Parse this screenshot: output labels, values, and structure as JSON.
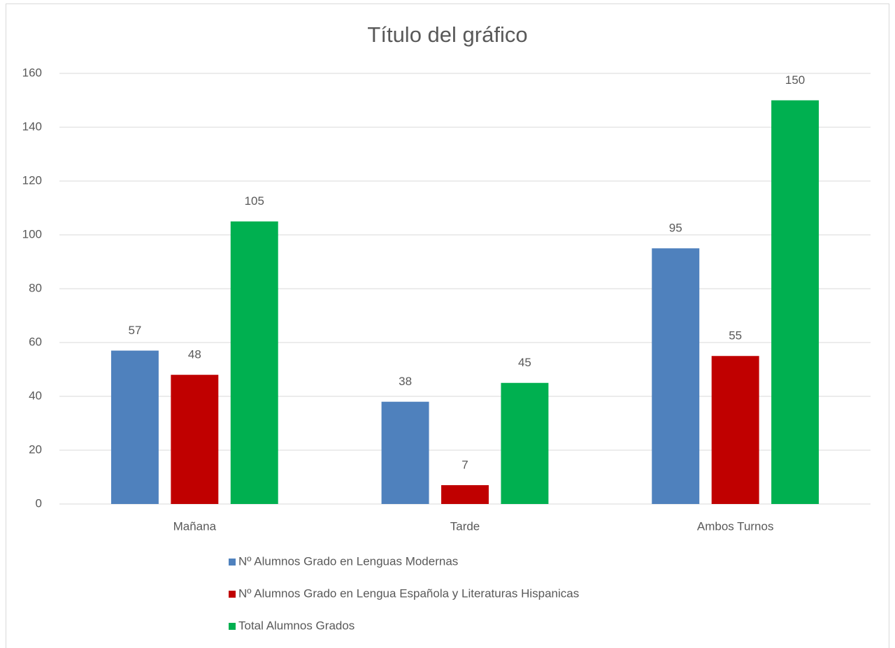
{
  "chart_data": {
    "type": "bar",
    "title": "Título del gráfico",
    "categories": [
      "Mañana",
      "Tarde",
      "Ambos Turnos"
    ],
    "series": [
      {
        "name": "Nº Alumnos Grado en Lenguas Modernas",
        "color": "#4f81bd",
        "values": [
          57,
          38,
          95
        ]
      },
      {
        "name": "Nº Alumnos Grado en Lengua Española y Literaturas Hispanicas",
        "color": "#c00000",
        "values": [
          48,
          7,
          55
        ]
      },
      {
        "name": "Total Alumnos Grados",
        "color": "#00b050",
        "values": [
          105,
          45,
          150
        ]
      }
    ],
    "ylim": [
      0,
      160
    ],
    "yticks": [
      0,
      20,
      40,
      60,
      80,
      100,
      120,
      140,
      160
    ],
    "grid": true,
    "legend": "bottom",
    "data_labels": true
  }
}
